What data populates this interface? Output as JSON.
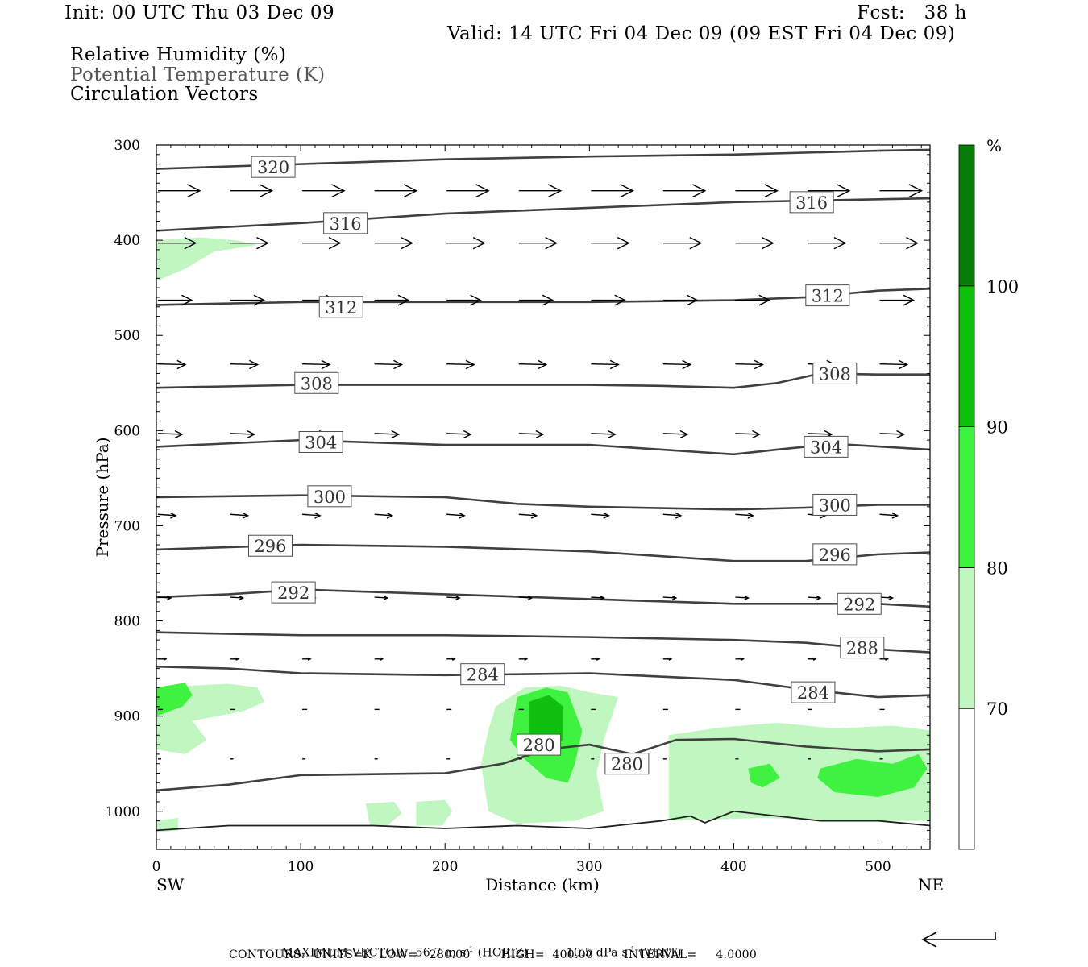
{
  "header": {
    "init": "Init: 00 UTC Thu 03 Dec 09",
    "fcst": "Fcst:   38 h",
    "valid": "Valid: 14 UTC Fri 04 Dec 09 (09 EST Fri 04 Dec 09)",
    "fields": [
      "Relative Humidity (%)",
      "Potential Temperature (K)",
      "Circulation Vectors"
    ]
  },
  "footer": {
    "max_vector_label": "MAXIMUM VECTOR:",
    "max_vector_horiz": "56.7 m s",
    "horiz_tag": "(HORIZ)",
    "max_vector_vert": "10.5 dPa s",
    "vert_tag": "(VERT)",
    "exp": "-1",
    "contours": "CONTOURS:  UNITS=K  LOW=   280.00        HIGH=  400.00        INTERVAL=     4.0000"
  },
  "colors": {
    "rh70": "#c0f7c0",
    "rh80": "#3ff23f",
    "rh90": "#0fc00f",
    "rh100": "#077d07",
    "contour": "#404040",
    "vector": "#000000"
  },
  "chart_data": {
    "type": "cross-section",
    "xlabel": "Distance (km)",
    "ylabel": "Pressure (hPa)",
    "x_end_labels": [
      "SW",
      "NE"
    ],
    "xlim": [
      0,
      536
    ],
    "ylim": [
      300,
      1040
    ],
    "xticks": [
      0,
      100,
      200,
      300,
      400,
      500
    ],
    "yticks": [
      300,
      400,
      500,
      600,
      700,
      800,
      900,
      1000
    ],
    "colorbar": {
      "unit": "%",
      "levels": [
        70,
        80,
        90,
        100
      ],
      "colors": [
        "#ffffff",
        "#c0f7c0",
        "#3ff23f",
        "#0fc00f",
        "#077d07"
      ]
    },
    "contours": [
      {
        "theta": 320,
        "points": [
          [
            0,
            325
          ],
          [
            100,
            320
          ],
          [
            200,
            315
          ],
          [
            300,
            312
          ],
          [
            400,
            310
          ],
          [
            500,
            306
          ],
          [
            536,
            305
          ]
        ],
        "labels": [
          [
            81,
            323
          ]
        ]
      },
      {
        "theta": 316,
        "points": [
          [
            0,
            390
          ],
          [
            100,
            382
          ],
          [
            200,
            372
          ],
          [
            300,
            366
          ],
          [
            400,
            360
          ],
          [
            500,
            357
          ],
          [
            536,
            356
          ]
        ],
        "labels": [
          [
            131,
            382
          ],
          [
            454,
            360
          ]
        ]
      },
      {
        "theta": 312,
        "points": [
          [
            0,
            468
          ],
          [
            100,
            465
          ],
          [
            200,
            465
          ],
          [
            300,
            465
          ],
          [
            350,
            464
          ],
          [
            400,
            463
          ],
          [
            450,
            460
          ],
          [
            500,
            453
          ],
          [
            536,
            451
          ]
        ],
        "labels": [
          [
            128,
            470
          ],
          [
            465,
            458
          ]
        ]
      },
      {
        "theta": 308,
        "points": [
          [
            0,
            555
          ],
          [
            100,
            552
          ],
          [
            200,
            552
          ],
          [
            300,
            552
          ],
          [
            350,
            553
          ],
          [
            400,
            555
          ],
          [
            430,
            550
          ],
          [
            460,
            540
          ],
          [
            500,
            541
          ],
          [
            536,
            541
          ]
        ],
        "labels": [
          [
            111,
            550
          ],
          [
            470,
            540
          ]
        ]
      },
      {
        "theta": 304,
        "points": [
          [
            0,
            617
          ],
          [
            100,
            610
          ],
          [
            200,
            615
          ],
          [
            300,
            615
          ],
          [
            350,
            620
          ],
          [
            400,
            625
          ],
          [
            430,
            620
          ],
          [
            470,
            614
          ],
          [
            536,
            620
          ]
        ],
        "labels": [
          [
            114,
            612
          ],
          [
            464,
            617
          ]
        ]
      },
      {
        "theta": 300,
        "points": [
          [
            0,
            670
          ],
          [
            100,
            668
          ],
          [
            200,
            670
          ],
          [
            250,
            677
          ],
          [
            300,
            680
          ],
          [
            400,
            683
          ],
          [
            450,
            681
          ],
          [
            500,
            678
          ],
          [
            536,
            678
          ]
        ],
        "labels": [
          [
            120,
            669
          ],
          [
            470,
            678
          ]
        ]
      },
      {
        "theta": 296,
        "points": [
          [
            0,
            725
          ],
          [
            100,
            720
          ],
          [
            200,
            722
          ],
          [
            300,
            727
          ],
          [
            400,
            737
          ],
          [
            450,
            737
          ],
          [
            500,
            730
          ],
          [
            536,
            728
          ]
        ],
        "labels": [
          [
            79,
            721
          ],
          [
            470,
            730
          ]
        ]
      },
      {
        "theta": 292,
        "points": [
          [
            0,
            775
          ],
          [
            50,
            772
          ],
          [
            100,
            767
          ],
          [
            200,
            772
          ],
          [
            300,
            777
          ],
          [
            400,
            782
          ],
          [
            450,
            782
          ],
          [
            500,
            782
          ],
          [
            536,
            785
          ]
        ],
        "labels": [
          [
            95,
            770
          ],
          [
            487,
            782
          ]
        ]
      },
      {
        "theta": 288,
        "points": [
          [
            0,
            812
          ],
          [
            100,
            815
          ],
          [
            200,
            815
          ],
          [
            300,
            817
          ],
          [
            400,
            820
          ],
          [
            450,
            823
          ],
          [
            500,
            830
          ],
          [
            536,
            833
          ]
        ],
        "labels": [
          [
            489,
            828
          ]
        ]
      },
      {
        "theta": 284,
        "points": [
          [
            0,
            848
          ],
          [
            50,
            850
          ],
          [
            100,
            855
          ],
          [
            200,
            857
          ],
          [
            300,
            855
          ],
          [
            400,
            862
          ],
          [
            450,
            872
          ],
          [
            500,
            880
          ],
          [
            536,
            878
          ]
        ],
        "labels": [
          [
            226,
            856
          ],
          [
            455,
            875
          ]
        ]
      },
      {
        "theta": 280,
        "points": [
          [
            0,
            978
          ],
          [
            50,
            972
          ],
          [
            100,
            962
          ],
          [
            200,
            960
          ],
          [
            240,
            950
          ],
          [
            270,
            935
          ],
          [
            300,
            930
          ],
          [
            330,
            940
          ],
          [
            360,
            925
          ],
          [
            400,
            924
          ],
          [
            450,
            932
          ],
          [
            500,
            937
          ],
          [
            536,
            935
          ]
        ],
        "labels": [
          [
            265,
            930
          ],
          [
            326,
            950
          ]
        ]
      }
    ],
    "rh_regions": [
      {
        "level": 70,
        "points": [
          [
            0,
            400
          ],
          [
            30,
            397
          ],
          [
            55,
            400
          ],
          [
            70,
            405
          ],
          [
            40,
            412
          ],
          [
            20,
            430
          ],
          [
            0,
            443
          ]
        ]
      },
      {
        "level": 70,
        "points": [
          [
            0,
            870
          ],
          [
            50,
            866
          ],
          [
            70,
            870
          ],
          [
            75,
            885
          ],
          [
            60,
            895
          ],
          [
            25,
            905
          ],
          [
            35,
            925
          ],
          [
            20,
            940
          ],
          [
            0,
            935
          ]
        ]
      },
      {
        "level": 80,
        "points": [
          [
            0,
            870
          ],
          [
            20,
            865
          ],
          [
            25,
            878
          ],
          [
            18,
            890
          ],
          [
            0,
            900
          ]
        ]
      },
      {
        "level": 70,
        "points": [
          [
            235,
            890
          ],
          [
            255,
            870
          ],
          [
            280,
            868
          ],
          [
            300,
            875
          ],
          [
            320,
            880
          ],
          [
            310,
            925
          ],
          [
            305,
            960
          ],
          [
            310,
            1000
          ],
          [
            290,
            1010
          ],
          [
            250,
            1013
          ],
          [
            230,
            1000
          ],
          [
            225,
            950
          ],
          [
            230,
            915
          ]
        ]
      },
      {
        "level": 80,
        "points": [
          [
            250,
            880
          ],
          [
            270,
            870
          ],
          [
            285,
            875
          ],
          [
            295,
            915
          ],
          [
            290,
            950
          ],
          [
            285,
            970
          ],
          [
            270,
            965
          ],
          [
            255,
            945
          ],
          [
            245,
            925
          ]
        ]
      },
      {
        "level": 90,
        "points": [
          [
            258,
            885
          ],
          [
            272,
            878
          ],
          [
            282,
            890
          ],
          [
            282,
            925
          ],
          [
            270,
            935
          ],
          [
            258,
            920
          ]
        ]
      },
      {
        "level": 70,
        "points": [
          [
            355,
            920
          ],
          [
            390,
            912
          ],
          [
            430,
            907
          ],
          [
            470,
            913
          ],
          [
            510,
            910
          ],
          [
            536,
            915
          ],
          [
            536,
            1010
          ],
          [
            480,
            1010
          ],
          [
            420,
            1007
          ],
          [
            355,
            1010
          ]
        ]
      },
      {
        "level": 80,
        "points": [
          [
            410,
            955
          ],
          [
            425,
            950
          ],
          [
            432,
            965
          ],
          [
            420,
            975
          ],
          [
            412,
            970
          ]
        ]
      },
      {
        "level": 80,
        "points": [
          [
            460,
            955
          ],
          [
            485,
            945
          ],
          [
            510,
            950
          ],
          [
            528,
            940
          ],
          [
            534,
            955
          ],
          [
            525,
            975
          ],
          [
            500,
            985
          ],
          [
            470,
            980
          ],
          [
            458,
            965
          ]
        ]
      },
      {
        "level": 70,
        "points": [
          [
            145,
            992
          ],
          [
            165,
            990
          ],
          [
            170,
            1002
          ],
          [
            160,
            1015
          ],
          [
            148,
            1015
          ]
        ]
      },
      {
        "level": 70,
        "points": [
          [
            180,
            990
          ],
          [
            200,
            988
          ],
          [
            205,
            1000
          ],
          [
            198,
            1015
          ],
          [
            180,
            1015
          ]
        ]
      },
      {
        "level": 70,
        "points": [
          [
            0,
            1010
          ],
          [
            15,
            1007
          ],
          [
            15,
            1020
          ],
          [
            0,
            1022
          ]
        ]
      }
    ],
    "surface": [
      [
        0,
        1020
      ],
      [
        50,
        1015
      ],
      [
        100,
        1015
      ],
      [
        150,
        1015
      ],
      [
        200,
        1018
      ],
      [
        250,
        1015
      ],
      [
        300,
        1018
      ],
      [
        350,
        1010
      ],
      [
        370,
        1005
      ],
      [
        380,
        1012
      ],
      [
        400,
        1000
      ],
      [
        430,
        1005
      ],
      [
        460,
        1010
      ],
      [
        500,
        1010
      ],
      [
        536,
        1015
      ]
    ],
    "vector_rows": [
      {
        "p": 348,
        "dx": 50,
        "tilt": 0
      },
      {
        "p": 403,
        "dx": 45,
        "tilt": 0
      },
      {
        "p": 463,
        "dx": 40,
        "tilt": 0
      },
      {
        "p": 530,
        "dx": 32,
        "tilt": 0.2
      },
      {
        "p": 603,
        "dx": 28,
        "tilt": 0.3
      },
      {
        "p": 688,
        "dx": 20,
        "tilt": 0.6
      },
      {
        "p": 775,
        "dx": 14,
        "tilt": 0.5
      },
      {
        "p": 840,
        "dx": 8,
        "tilt": 0
      },
      {
        "p": 893,
        "dx": 4,
        "tilt": 0
      },
      {
        "p": 945,
        "dx": 2,
        "tilt": 0
      }
    ],
    "vector_x": [
      0,
      50,
      100,
      150,
      200,
      250,
      300,
      350,
      400,
      450,
      500
    ]
  }
}
